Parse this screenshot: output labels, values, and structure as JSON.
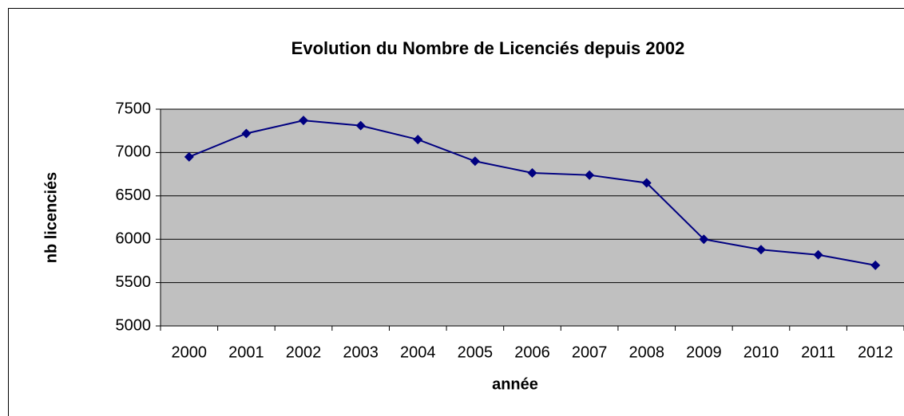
{
  "chart_data": {
    "type": "line",
    "title": "Evolution du Nombre de Licenciés depuis 2002",
    "x_label": "année",
    "y_label": "nb licenciés",
    "categories": [
      "2000",
      "2001",
      "2002",
      "2003",
      "2004",
      "2005",
      "2006",
      "2007",
      "2008",
      "2009",
      "2010",
      "2011",
      "2012"
    ],
    "values": [
      6950,
      7220,
      7370,
      7310,
      7150,
      6900,
      6765,
      6740,
      6650,
      6000,
      5880,
      5820,
      5700
    ],
    "color": "#000080",
    "plot_background": "#c0c0c0",
    "ylim": [
      5000,
      7500
    ],
    "yticks": [
      5000,
      5500,
      6000,
      6500,
      7000,
      7500
    ],
    "grid": true
  }
}
